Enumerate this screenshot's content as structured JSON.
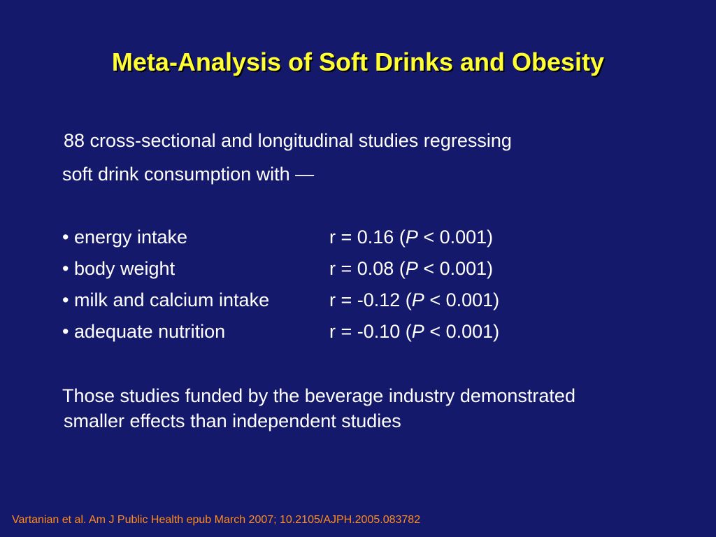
{
  "slide": {
    "title": "Meta-Analysis of Soft Drinks and Obesity",
    "intro_line1": "88 cross-sectional and longitudinal studies regressing",
    "intro_line2": "soft drink consumption with —",
    "correlations": [
      {
        "bullet": "•",
        "label": "energy intake",
        "r_prefix": "r = 0.16 (",
        "p_symbol": "P",
        "p_suffix": " < 0.001)"
      },
      {
        "bullet": "•",
        "label": "body weight",
        "r_prefix": "r = 0.08 (",
        "p_symbol": "P",
        "p_suffix": " < 0.001)"
      },
      {
        "bullet": "•",
        "label": "milk and calcium intake",
        "r_prefix": "r = -0.12 (",
        "p_symbol": "P",
        "p_suffix": " < 0.001)"
      },
      {
        "bullet": "•",
        "label": "adequate nutrition",
        "r_prefix": "r = -0.10 (",
        "p_symbol": "P",
        "p_suffix": " < 0.001)"
      }
    ],
    "closing_line1": "Those studies funded by the beverage industry demonstrated",
    "closing_line2": "smaller effects than independent studies",
    "citation": "Vartanian et al. Am J Public Health epub March 2007; 10.2105/AJPH.2005.083782"
  },
  "colors": {
    "background": "#15196c",
    "title": "#ffff33",
    "body_text": "#ffffff",
    "citation": "#ff8c1a"
  }
}
